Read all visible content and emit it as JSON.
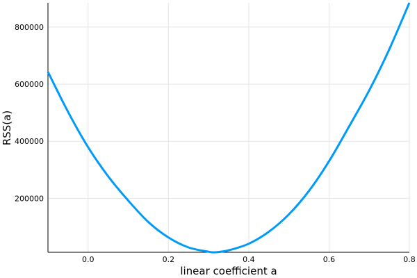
{
  "chart_data": {
    "type": "line",
    "xlabel": "linear coefficient a",
    "ylabel": "RSS(a)",
    "xlim": [
      -0.1,
      0.8
    ],
    "ylim": [
      11000,
      885000
    ],
    "x_ticks": [
      0.0,
      0.2,
      0.4,
      0.6,
      0.8
    ],
    "x_tick_labels": [
      "0.0",
      "0.2",
      "0.4",
      "0.6",
      "0.8"
    ],
    "y_ticks": [
      200000,
      400000,
      600000,
      800000
    ],
    "y_tick_labels": [
      "200000",
      "400000",
      "600000",
      "800000"
    ],
    "grid": true,
    "legend": "none",
    "series": [
      {
        "color": "#009af9",
        "x": [
          -0.1,
          -0.05,
          0.0,
          0.05,
          0.1,
          0.15,
          0.2,
          0.25,
          0.3,
          0.317,
          0.35,
          0.4,
          0.45,
          0.5,
          0.55,
          0.6,
          0.65,
          0.7,
          0.75,
          0.8
        ],
        "y": [
          643000,
          503000,
          379000,
          277000,
          192000,
          117000,
          63000,
          28000,
          13000,
          11000,
          18000,
          41000,
          83000,
          144000,
          226000,
          330000,
          452000,
          578000,
          722000,
          885000
        ]
      }
    ]
  }
}
